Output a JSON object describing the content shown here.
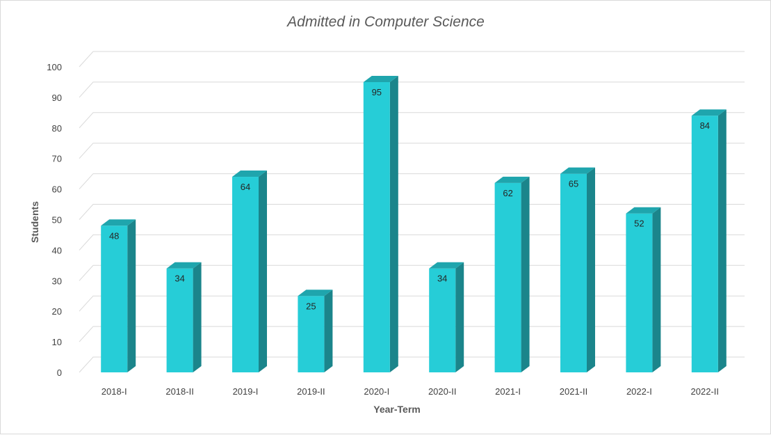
{
  "chart_data": {
    "type": "bar",
    "title": "Admitted in Computer Science",
    "xlabel": "Year-Term",
    "ylabel": "Students",
    "categories": [
      "2018-I",
      "2018-II",
      "2019-I",
      "2019-II",
      "2020-I",
      "2020-II",
      "2021-I",
      "2021-II",
      "2022-I",
      "2022-II"
    ],
    "values": [
      48,
      34,
      64,
      25,
      95,
      34,
      62,
      65,
      52,
      84
    ],
    "ylim": [
      0,
      100
    ],
    "yticks": [
      0,
      10,
      20,
      30,
      40,
      50,
      60,
      70,
      80,
      90,
      100
    ],
    "grid": true,
    "style": "3d-column",
    "colors": {
      "front": "#26CDD7",
      "top": "#1FA5AD",
      "side": "#1B858B",
      "grid": "#d9d9d9"
    }
  }
}
